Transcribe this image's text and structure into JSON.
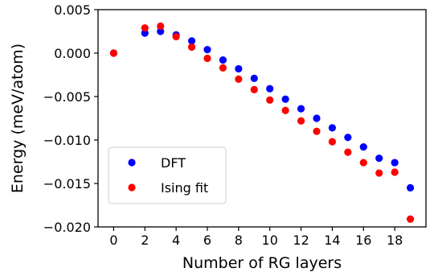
{
  "chart_data": {
    "type": "scatter",
    "xlabel": "Number of RG layers",
    "ylabel": "Energy (meV/atom)",
    "xlim": [
      -1,
      20
    ],
    "ylim": [
      -0.02,
      0.005
    ],
    "xticks": [
      0,
      2,
      4,
      6,
      8,
      10,
      12,
      14,
      16,
      18
    ],
    "xtick_labels": [
      "0",
      "2",
      "4",
      "6",
      "8",
      "10",
      "12",
      "14",
      "16",
      "18"
    ],
    "yticks": [
      0.005,
      0.0,
      -0.005,
      -0.01,
      -0.015,
      -0.02
    ],
    "ytick_labels": [
      "0.005",
      "0.000",
      "−0.005",
      "−0.010",
      "−0.015",
      "−0.020"
    ],
    "grid": false,
    "legend_position": "lower-left",
    "series": [
      {
        "name": "DFT",
        "color": "#0000ff",
        "x": [
          0,
          2,
          3,
          4,
          5,
          6,
          7,
          8,
          9,
          10,
          11,
          12,
          13,
          14,
          15,
          16,
          17,
          18,
          19
        ],
        "y": [
          0.0,
          0.0023,
          0.0025,
          0.0021,
          0.0014,
          0.0004,
          -0.0008,
          -0.0018,
          -0.0029,
          -0.0041,
          -0.0053,
          -0.0064,
          -0.0075,
          -0.0086,
          -0.0097,
          -0.0108,
          -0.0121,
          -0.0126,
          -0.0155
        ]
      },
      {
        "name": "Ising fit",
        "color": "#ff0000",
        "x": [
          0,
          2,
          3,
          4,
          5,
          6,
          7,
          8,
          9,
          10,
          11,
          12,
          13,
          14,
          15,
          16,
          17,
          18,
          19
        ],
        "y": [
          0.0,
          0.0029,
          0.0031,
          0.0019,
          0.0007,
          -0.0006,
          -0.0017,
          -0.003,
          -0.0042,
          -0.0054,
          -0.0066,
          -0.0078,
          -0.009,
          -0.0102,
          -0.0114,
          -0.0126,
          -0.0138,
          -0.0137,
          -0.0191
        ]
      }
    ]
  }
}
